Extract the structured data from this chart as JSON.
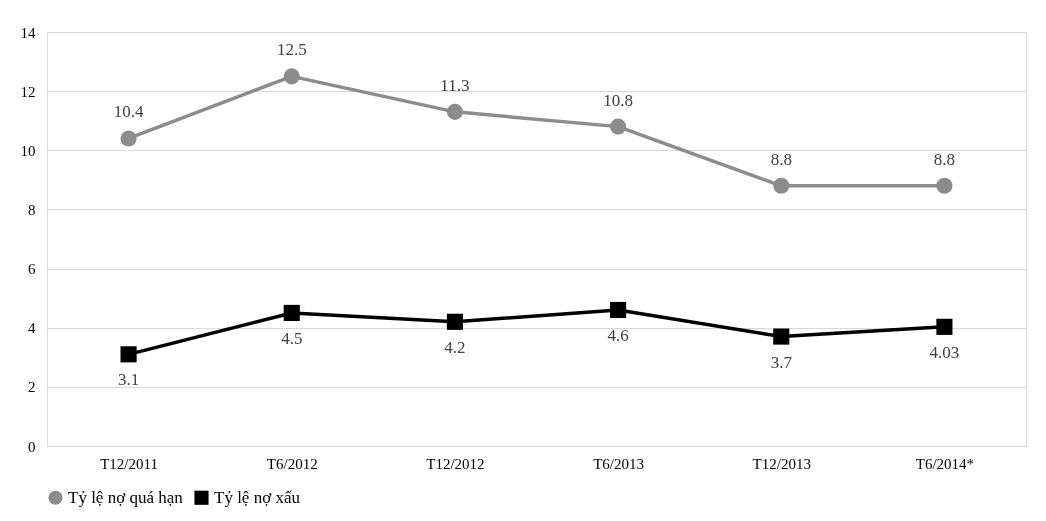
{
  "chart_data": {
    "type": "line",
    "categories": [
      "T12/2011",
      "T6/2012",
      "T12/2012",
      "T6/2013",
      "T12/2013",
      "T6/2014*"
    ],
    "series": [
      {
        "name": "Tỷ lệ nợ quá hạn",
        "color": "#8c8c8c",
        "marker": "circle",
        "values": [
          10.4,
          12.5,
          11.3,
          10.8,
          8.8,
          8.8
        ]
      },
      {
        "name": "Tỷ lệ nợ xấu",
        "color": "#000000",
        "marker": "square",
        "values": [
          3.1,
          4.5,
          4.2,
          4.6,
          3.7,
          4.03
        ]
      }
    ],
    "ylim": [
      0,
      14
    ],
    "yticks": [
      0,
      2,
      4,
      6,
      8,
      10,
      12,
      14
    ],
    "grid": "y",
    "legend": "bottom",
    "data_labels": true,
    "line_style": "solid"
  }
}
